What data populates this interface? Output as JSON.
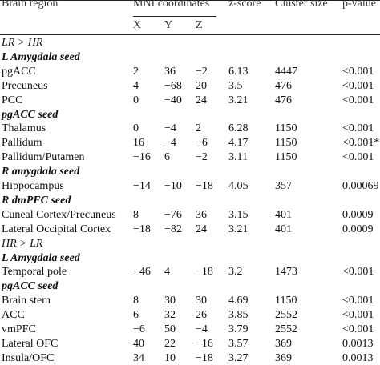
{
  "header": {
    "brain_region": "Brain region",
    "mni": "MNI coordinates",
    "x": "X",
    "y": "Y",
    "z": "Z",
    "zscore": "z-score",
    "cluster": "Cluster size",
    "pvalue": "p-value"
  },
  "rows": [
    {
      "type": "comparison",
      "label": "LR > HR"
    },
    {
      "type": "seed",
      "label": "L Amygdala seed"
    },
    {
      "type": "data",
      "region": "pgACC",
      "x": "2",
      "y": "36",
      "z": "−2",
      "zscore": "6.13",
      "cluster": "4447",
      "pvalue": "<0.001"
    },
    {
      "type": "data",
      "region": "Precuneus",
      "x": "4",
      "y": "−68",
      "z": "20",
      "zscore": "3.5",
      "cluster": "476",
      "pvalue": "<0.001"
    },
    {
      "type": "data",
      "region": "PCC",
      "x": "0",
      "y": "−40",
      "z": "24",
      "zscore": "3.21",
      "cluster": "476",
      "pvalue": "<0.001"
    },
    {
      "type": "seed",
      "label": "pgACC seed"
    },
    {
      "type": "data",
      "region": "Thalamus",
      "x": "0",
      "y": "−4",
      "z": "2",
      "zscore": "6.28",
      "cluster": "1150",
      "pvalue": "<0.001"
    },
    {
      "type": "data",
      "region": "Pallidum",
      "x": "16",
      "y": "−4",
      "z": "−6",
      "zscore": "4.17",
      "cluster": "1150",
      "pvalue": "<0.001*"
    },
    {
      "type": "data",
      "region": "Pallidum/Putamen",
      "x": "−16",
      "y": "6",
      "z": "−2",
      "zscore": "3.11",
      "cluster": "1150",
      "pvalue": "<0.001"
    },
    {
      "type": "seed",
      "label": "R amygdala seed"
    },
    {
      "type": "data",
      "region": "Hippocampus",
      "x": "−14",
      "y": "−10",
      "z": "−18",
      "zscore": "4.05",
      "cluster": "357",
      "pvalue": "0.00069"
    },
    {
      "type": "seed",
      "label": "R dmPFC seed"
    },
    {
      "type": "data",
      "region": "Cuneal Cortex/Precuneus",
      "x": "8",
      "y": "−76",
      "z": "36",
      "zscore": "3.15",
      "cluster": "401",
      "pvalue": "0.0009"
    },
    {
      "type": "data",
      "region": "Lateral Occipital Cortex",
      "x": "−18",
      "y": "−82",
      "z": "24",
      "zscore": "3.21",
      "cluster": "401",
      "pvalue": "0.0009"
    },
    {
      "type": "comparison",
      "label": "HR > LR"
    },
    {
      "type": "seed",
      "label": "L Amygdala seed"
    },
    {
      "type": "data",
      "region": "Temporal pole",
      "x": "−46",
      "y": "4",
      "z": "−18",
      "zscore": "3.2",
      "cluster": "1473",
      "pvalue": "<0.001"
    },
    {
      "type": "seed",
      "label": "pgACC seed"
    },
    {
      "type": "data",
      "region": "Brain stem",
      "x": "8",
      "y": "30",
      "z": "30",
      "zscore": "4.69",
      "cluster": "1150",
      "pvalue": "<0.001"
    },
    {
      "type": "data",
      "region": "ACC",
      "x": "6",
      "y": "32",
      "z": "26",
      "zscore": "3.85",
      "cluster": "2552",
      "pvalue": "<0.001"
    },
    {
      "type": "data",
      "region": "vmPFC",
      "x": "−6",
      "y": "50",
      "z": "−4",
      "zscore": "3.79",
      "cluster": "2552",
      "pvalue": "<0.001"
    },
    {
      "type": "data",
      "region": "Lateral OFC",
      "x": "40",
      "y": "22",
      "z": "−16",
      "zscore": "3.57",
      "cluster": "369",
      "pvalue": "0.0013"
    },
    {
      "type": "data",
      "region": "Insula/OFC",
      "x": "34",
      "y": "10",
      "z": "−18",
      "zscore": "3.27",
      "cluster": "369",
      "pvalue": "0.0013"
    }
  ]
}
